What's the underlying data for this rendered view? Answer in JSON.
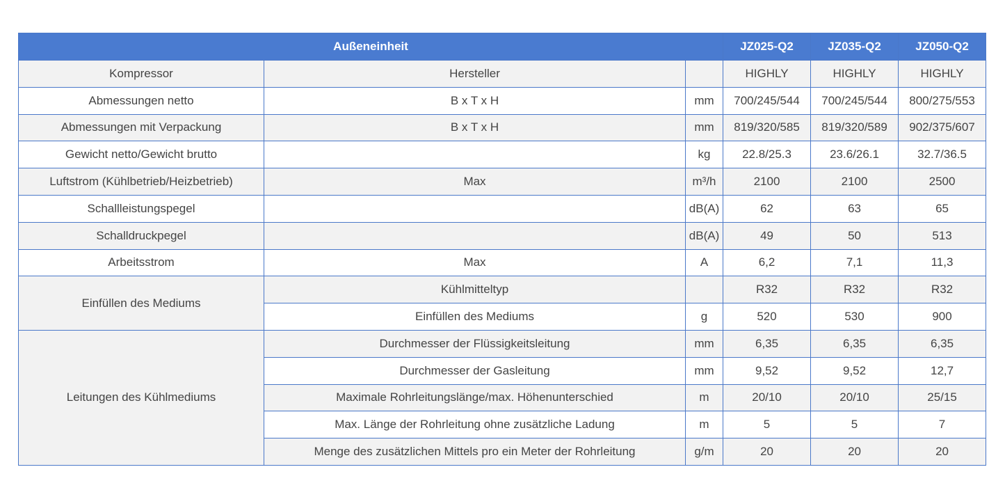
{
  "header": {
    "title": "Außeneinheit",
    "models": [
      "JZ025-Q2",
      "JZ035-Q2",
      "JZ050-Q2"
    ]
  },
  "rows": [
    {
      "label": "Kompressor",
      "param": "Hersteller",
      "unit": "",
      "values": [
        "HIGHLY",
        "HIGHLY",
        "HIGHLY"
      ]
    },
    {
      "label": "Abmessungen netto",
      "param": "B x T x H",
      "unit": "mm",
      "values": [
        "700/245/544",
        "700/245/544",
        "800/275/553"
      ]
    },
    {
      "label": "Abmessungen mit Verpackung",
      "param": "B x T x H",
      "unit": "mm",
      "values": [
        "819/320/585",
        "819/320/589",
        "902/375/607"
      ]
    },
    {
      "label": "Gewicht netto/Gewicht brutto",
      "param": "",
      "unit": "kg",
      "values": [
        "22.8/25.3",
        "23.6/26.1",
        "32.7/36.5"
      ]
    },
    {
      "label": "Luftstrom (Kühlbetrieb/Heizbetrieb)",
      "param": "Max",
      "unit": "m³/h",
      "values": [
        "2100",
        "2100",
        "2500"
      ]
    },
    {
      "label": "Schallleistungspegel",
      "param": "",
      "unit": "dB(A)",
      "values": [
        "62",
        "63",
        "65"
      ]
    },
    {
      "label": "Schalldruckpegel",
      "param": "",
      "unit": "dB(A)",
      "values": [
        "49",
        "50",
        "513"
      ]
    },
    {
      "label": "Arbeitsstrom",
      "param": "Max",
      "unit": "A",
      "values": [
        "6,2",
        "7,1",
        "11,3"
      ]
    }
  ],
  "groups": [
    {
      "label": "Einfüllen des Mediums",
      "rows": [
        {
          "param": "Kühlmitteltyp",
          "unit": "",
          "values": [
            "R32",
            "R32",
            "R32"
          ]
        },
        {
          "param": "Einfüllen des Mediums",
          "unit": "g",
          "values": [
            "520",
            "530",
            "900"
          ]
        }
      ]
    },
    {
      "label": "Leitungen des Kühlmediums",
      "rows": [
        {
          "param": "Durchmesser der Flüssigkeitsleitung",
          "unit": "mm",
          "values": [
            "6,35",
            "6,35",
            "6,35"
          ]
        },
        {
          "param": "Durchmesser der Gasleitung",
          "unit": "mm",
          "values": [
            "9,52",
            "9,52",
            "12,7"
          ]
        },
        {
          "param": "Maximale Rohrleitungslänge/max. Höhenunterschied",
          "unit": "m",
          "values": [
            "20/10",
            "20/10",
            "25/15"
          ]
        },
        {
          "param": "Max. Länge der Rohrleitung ohne zusätzliche Ladung",
          "unit": "m",
          "values": [
            "5",
            "5",
            "7"
          ]
        },
        {
          "param": "Menge des zusätzlichen Mittels pro ein Meter der Rohrleitung",
          "unit": "g/m",
          "values": [
            "20",
            "20",
            "20"
          ]
        }
      ]
    }
  ]
}
